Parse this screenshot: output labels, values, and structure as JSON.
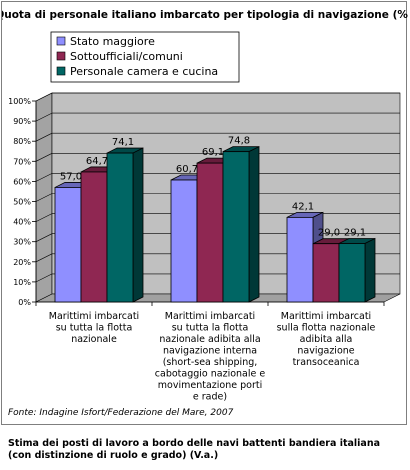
{
  "chart_data": {
    "type": "bar",
    "title": "Quota di personale italiano imbarcato per tipologia di navigazione (%)",
    "categories": [
      [
        "Marittimi imbarcati",
        "su tutta la flotta",
        "nazionale"
      ],
      [
        "Marittimi imbarcati",
        "su tutta la flotta",
        "nazionale adibita alla",
        "navigazione interna",
        "(short-sea shipping,",
        "cabotaggio nazionale e",
        "movimentazione porti",
        "e rade)"
      ],
      [
        "Marittimi imbarcati",
        "sulla flotta nazionale",
        "adibita alla",
        "navigazione",
        "transoceanica"
      ]
    ],
    "series": [
      {
        "name": "Stato maggiore",
        "values": [
          57.0,
          60.7,
          42.1
        ],
        "labels": [
          "57,0",
          "60,7",
          "42,1"
        ],
        "color": "#8f8fff"
      },
      {
        "name": "Sottoufficiali/comuni",
        "values": [
          64.7,
          69.1,
          29.0
        ],
        "labels": [
          "64,7",
          "69,1",
          "29,0"
        ],
        "color": "#8f2752"
      },
      {
        "name": "Personale camera e cucina",
        "values": [
          74.1,
          74.8,
          29.1
        ],
        "labels": [
          "74,1",
          "74,8",
          "29,1"
        ],
        "color": "#006664"
      }
    ],
    "yticks": [
      "0%",
      "10%",
      "20%",
      "30%",
      "40%",
      "50%",
      "60%",
      "70%",
      "80%",
      "90%",
      "100%"
    ],
    "ylim": [
      0,
      100
    ],
    "grid": true,
    "legend_position": "top-left",
    "wall_color": "#c0c0c0",
    "source": "Fonte: Indagine Isfort/Federazione del Mare, 2007"
  },
  "caption": {
    "line1": "Stima dei posti di lavoro a bordo delle navi battenti bandiera italiana",
    "line2": "(con distinzione di ruolo e grado) (V.a.)"
  }
}
